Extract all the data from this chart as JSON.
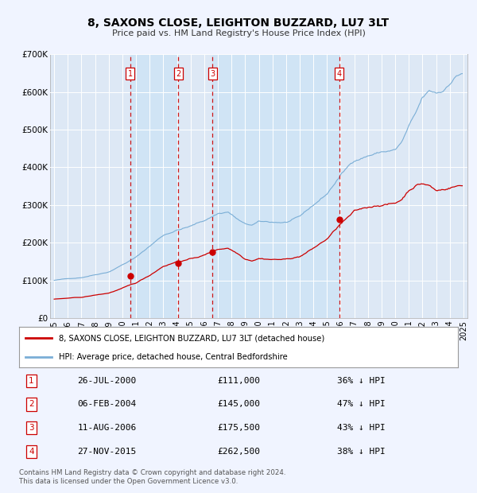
{
  "title": "8, SAXONS CLOSE, LEIGHTON BUZZARD, LU7 3LT",
  "subtitle": "Price paid vs. HM Land Registry's House Price Index (HPI)",
  "ylim": [
    0,
    700000
  ],
  "yticks": [
    0,
    100000,
    200000,
    300000,
    400000,
    500000,
    600000,
    700000
  ],
  "ytick_labels": [
    "£0",
    "£100K",
    "£200K",
    "£300K",
    "£400K",
    "£500K",
    "£600K",
    "£700K"
  ],
  "xlim_start": 1994.7,
  "xlim_end": 2025.3,
  "background_color": "#f0f4ff",
  "plot_bg_color": "#dde8f5",
  "grid_color": "#ffffff",
  "transactions": [
    {
      "num": 1,
      "year": 2000.57,
      "price": 111000,
      "date": "26-JUL-2000",
      "pct": "36%"
    },
    {
      "num": 2,
      "year": 2004.09,
      "price": 145000,
      "date": "06-FEB-2004",
      "pct": "47%"
    },
    {
      "num": 3,
      "year": 2006.61,
      "price": 175500,
      "date": "11-AUG-2006",
      "pct": "43%"
    },
    {
      "num": 4,
      "year": 2015.91,
      "price": 262500,
      "date": "27-NOV-2015",
      "pct": "38%"
    }
  ],
  "legend_red_label": "8, SAXONS CLOSE, LEIGHTON BUZZARD, LU7 3LT (detached house)",
  "legend_blue_label": "HPI: Average price, detached house, Central Bedfordshire",
  "footer_text": "Contains HM Land Registry data © Crown copyright and database right 2024.\nThis data is licensed under the Open Government Licence v3.0.",
  "red_color": "#cc0000",
  "blue_color": "#7aaed6",
  "marker_box_color": "#cc0000",
  "dashed_line_color": "#cc0000",
  "shade_color": "#d0e4f5"
}
